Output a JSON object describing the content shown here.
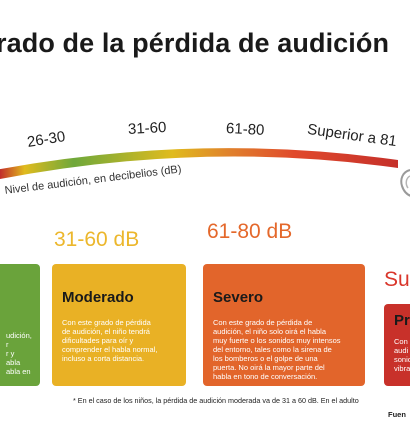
{
  "title": "rado de la pérdida de audición",
  "scale": {
    "labels": [
      "26-30",
      "31-60",
      "61-80",
      "Superior a 81"
    ],
    "caption": "Nivel de audición, en decibelios (dB)",
    "colors": [
      "#c22d2a",
      "#e0bb1e",
      "#6fa83b",
      "#e0bb1e",
      "#e0812c",
      "#e0492c",
      "#c22d2a"
    ]
  },
  "levels": [
    {
      "label": "31-60 dB",
      "color": "#ecb72c"
    },
    {
      "label": "61-80 dB",
      "color": "#e4682b"
    },
    {
      "label": "Su",
      "color": "#d9362b"
    }
  ],
  "cards": [
    {
      "title": "",
      "lines": [
        "udición,",
        "r",
        "r y",
        "abla",
        "abla en"
      ],
      "bg": "#6aa33b",
      "head_color": "#6aa33b"
    },
    {
      "title": "Moderado",
      "lines": [
        "Con este grado de pérdida",
        "de audición, el niño tendrá",
        "dificultades para oír y",
        "comprender el habla normal,",
        "incluso a corta distancia."
      ],
      "bg": "#e9b125",
      "head_color": "#1a1a1a"
    },
    {
      "title": "Severo",
      "lines": [
        "Con este grado de pérdida de",
        "audición, el niño solo oirá el habla",
        "muy fuerte o los sonidos muy intensos",
        "del entorno, tales como la sirena de",
        "los bomberos o el golpe de una",
        "puerta. No oirá la mayor parte del",
        "habla en tono de conversación."
      ],
      "bg": "#e2652b",
      "head_color": "#1a1a1a"
    },
    {
      "title": "Pr",
      "lines": [
        "Con",
        "audi",
        "sonio",
        "vibra"
      ],
      "bg": "#c8312a",
      "head_color": "#1a1a1a"
    }
  ],
  "footnote": "* En el caso de los niños, la pérdida de audición moderada va de 31 a 60 dB. En el adulto",
  "source": "Fuen",
  "icon": "ear-icon"
}
